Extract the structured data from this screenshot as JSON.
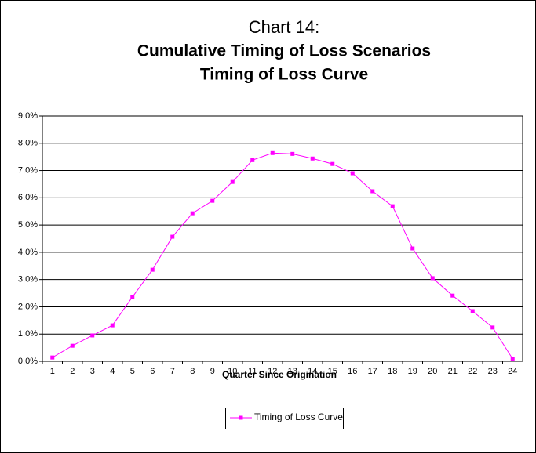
{
  "chart_data": {
    "type": "line",
    "title": "Chart 14:",
    "subtitle": [
      "Cumulative Timing of Loss Scenarios",
      "Timing of Loss Curve"
    ],
    "x_label": "Quarter Since Origination",
    "categories": [
      1,
      2,
      3,
      4,
      5,
      6,
      7,
      8,
      9,
      10,
      11,
      12,
      13,
      14,
      15,
      16,
      17,
      18,
      19,
      20,
      21,
      22,
      23,
      24
    ],
    "series": [
      {
        "name": "Timing of Loss Curve",
        "color": "#ff00ff",
        "values": [
          0.14,
          0.57,
          0.95,
          1.32,
          2.36,
          3.36,
          4.57,
          5.43,
          5.89,
          6.58,
          7.38,
          7.64,
          7.61,
          7.44,
          7.24,
          6.9,
          6.24,
          5.69,
          4.14,
          3.05,
          2.41,
          1.84,
          1.24,
          0.09
        ]
      }
    ],
    "ylim": [
      0,
      9
    ],
    "yticks": [
      {
        "value": 0,
        "label": "0.0%"
      },
      {
        "value": 1,
        "label": "1.0%"
      },
      {
        "value": 2,
        "label": "2.0%"
      },
      {
        "value": 3,
        "label": "3.0%"
      },
      {
        "value": 4,
        "label": "4.0%"
      },
      {
        "value": 5,
        "label": "5.0%"
      },
      {
        "value": 6,
        "label": "6.0%"
      },
      {
        "value": 7,
        "label": "7.0%"
      },
      {
        "value": 8,
        "label": "8.0%"
      },
      {
        "value": 9,
        "label": "9.0%"
      }
    ],
    "grid": true,
    "legend": "bottom"
  }
}
